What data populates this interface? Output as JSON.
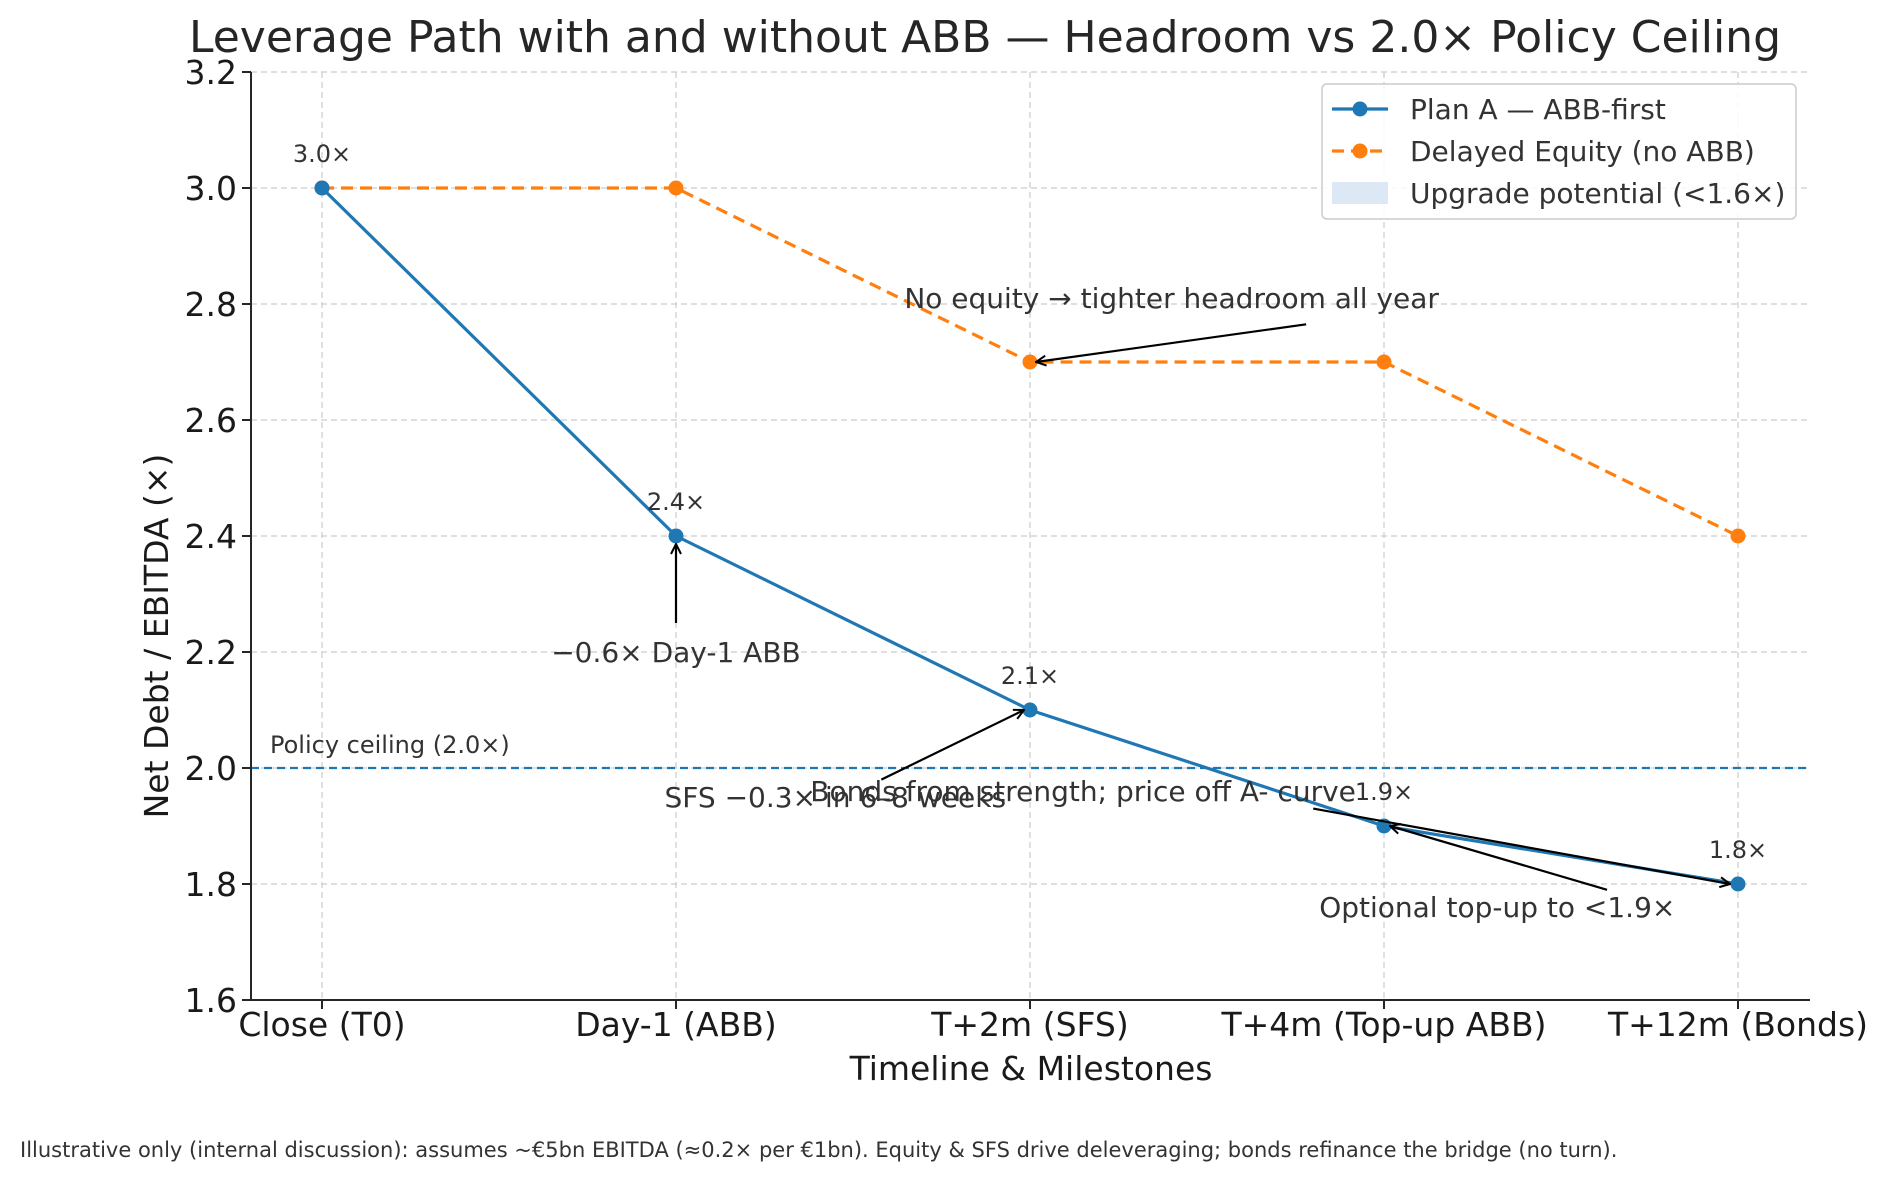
{
  "chart_data": {
    "type": "line",
    "title": "Leverage Path with and without ABB — Headroom vs 2.0× Policy Ceiling",
    "xlabel": "Timeline & Milestones",
    "ylabel": "Net Debt / EBITDA (×)",
    "categories": [
      "Close (T0)",
      "Day-1 (ABB)",
      "T+2m (SFS)",
      "T+4m (Top-up ABB)",
      "T+12m (Bonds)"
    ],
    "ylim": [
      1.6,
      3.2
    ],
    "yticks": [
      "1.6",
      "1.8",
      "2.0",
      "2.2",
      "2.4",
      "2.6",
      "2.8",
      "3.0",
      "3.2"
    ],
    "grid": true,
    "legend_position": "top-right",
    "series": [
      {
        "name": "Plan A — ABB-first",
        "values": [
          3.0,
          2.4,
          2.1,
          1.9,
          1.8
        ],
        "color": "#1f77b4",
        "style": "solid",
        "point_labels": [
          "3.0×",
          "2.4×",
          "2.1×",
          "1.9×",
          "1.8×"
        ]
      },
      {
        "name": "Delayed Equity (no ABB)",
        "values": [
          3.0,
          3.0,
          2.7,
          2.7,
          2.4
        ],
        "color": "#ff7f0e",
        "style": "dashed"
      }
    ],
    "reference_line": {
      "value": 2.0,
      "label": "Policy ceiling (2.0×)",
      "color": "#1f77b4"
    },
    "shaded_region": {
      "label": "Upgrade potential (<1.6×)",
      "below": 1.6,
      "color": "#dce9f5"
    },
    "annotations": [
      {
        "text": "−0.6× Day-1 ABB",
        "target_x": 1,
        "target_y": 2.4,
        "text_x": 1,
        "text_y": 2.2
      },
      {
        "text": "SFS −0.3× in 6–8 weeks",
        "target_x": 2,
        "target_y": 2.1,
        "text_x": 1.45,
        "text_y": 1.95
      },
      {
        "text": "No equity → tighter headroom all year",
        "target_x": 2,
        "target_y": 2.7,
        "text_x": 2.4,
        "text_y": 2.81
      },
      {
        "text": "Bonds from strength; price off A- curve",
        "target_x": 4,
        "target_y": 1.8,
        "text_x": 2.15,
        "text_y": 1.96
      },
      {
        "text": "Optional top-up to <1.9×",
        "target_x": 3,
        "target_y": 1.9,
        "text_x": 3.32,
        "text_y": 1.76
      }
    ]
  },
  "footnote": "Illustrative only (internal discussion): assumes ~€5bn EBITDA (≈0.2× per €1bn). Equity & SFS drive deleveraging; bonds refinance the bridge (no turn)."
}
